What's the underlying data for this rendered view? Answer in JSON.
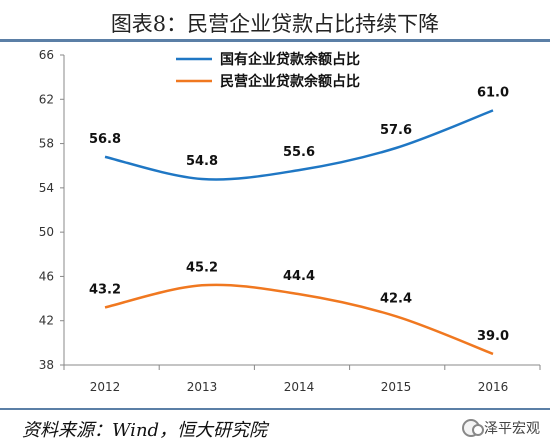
{
  "header": {
    "title": "图表8：民营企业贷款占比持续下降"
  },
  "footer": {
    "source": "资料来源：Wind，恒大研究院",
    "watermark": "泽平宏观"
  },
  "chart_data": {
    "type": "line",
    "title": "图表8：民营企业贷款占比持续下降",
    "xlabel": "",
    "ylabel": "",
    "categories": [
      "2012",
      "2013",
      "2014",
      "2015",
      "2016"
    ],
    "ylim": [
      38,
      66
    ],
    "yticks": [
      38,
      42,
      46,
      50,
      54,
      58,
      62,
      66
    ],
    "grid": false,
    "legend_position": "top-center",
    "series": [
      {
        "name": "国有企业贷款余额占比",
        "values": [
          56.8,
          54.8,
          55.6,
          57.6,
          61.0
        ],
        "labels": [
          "56.8",
          "54.8",
          "55.6",
          "57.6",
          "61.0"
        ],
        "color": "#1f77c4"
      },
      {
        "name": "民营企业贷款余额占比",
        "values": [
          43.2,
          45.2,
          44.4,
          42.4,
          39.0
        ],
        "labels": [
          "43.2",
          "45.2",
          "44.4",
          "42.4",
          "39.0"
        ],
        "color": "#f07820"
      }
    ]
  }
}
